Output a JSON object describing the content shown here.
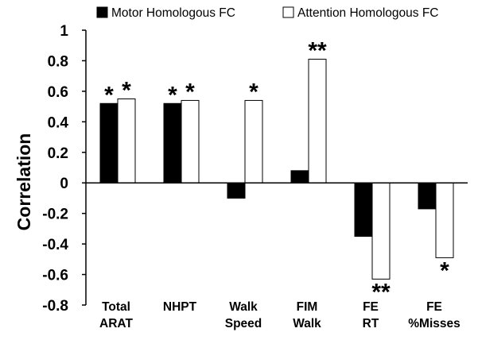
{
  "chart_data": {
    "type": "bar",
    "title": "",
    "xlabel": "",
    "ylabel": "Correlation",
    "ylim": [
      -0.8,
      1
    ],
    "yticks": [
      "1",
      "0.8",
      "0.6",
      "0.4",
      "0.2",
      "0",
      "-0.2",
      "-0.4",
      "-0.6",
      "-0.8"
    ],
    "grid": false,
    "legend_position": "top",
    "categories": [
      [
        "Total",
        "ARAT"
      ],
      [
        "NHPT"
      ],
      [
        "Walk",
        "Speed"
      ],
      [
        "FIM",
        "Walk"
      ],
      [
        "FE",
        "RT"
      ],
      [
        "FE",
        "%Misses"
      ]
    ],
    "series": [
      {
        "name": "Motor Homologous FC",
        "color": "#000000",
        "values": [
          0.52,
          0.52,
          -0.1,
          0.08,
          -0.35,
          -0.17
        ],
        "significance": [
          "*",
          "*",
          "",
          "",
          "",
          ""
        ]
      },
      {
        "name": "Attention Homologous FC",
        "color": "#ffffff",
        "values": [
          0.55,
          0.54,
          0.54,
          0.81,
          -0.63,
          -0.49
        ],
        "significance": [
          "*",
          "*",
          "*",
          "**",
          "**",
          "*"
        ]
      }
    ]
  }
}
